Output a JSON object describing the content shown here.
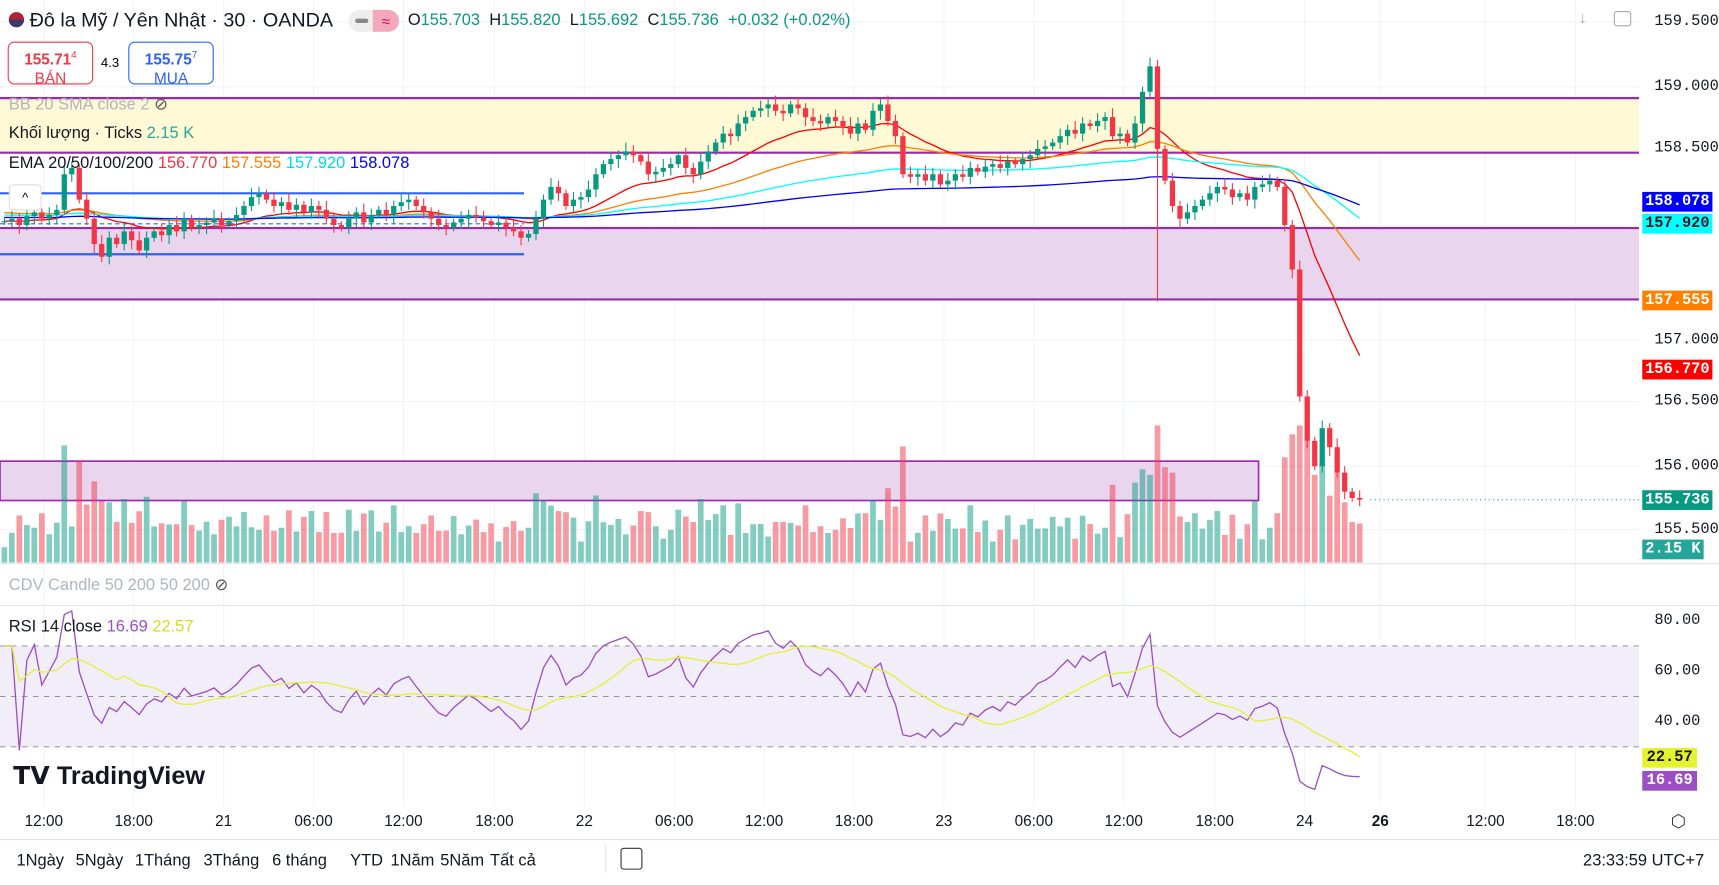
{
  "header": {
    "title": "Đô la Mỹ / Yên Nhật · 30 · OANDA",
    "ohlc": {
      "o_label": "O",
      "o": "155.703",
      "h_label": "H",
      "h": "155.820",
      "l_label": "L",
      "l": "155.692",
      "c_label": "C",
      "c": "155.736",
      "change": "+0.032 (+0.02%)"
    },
    "flag_icon": "us-flag-icon"
  },
  "trade": {
    "sell_price": "155.71",
    "sell_sup": "4",
    "sell_label": "BÁN",
    "spread": "4.3",
    "buy_price": "155.75",
    "buy_sup": "7",
    "buy_label": "MUA"
  },
  "indicators": {
    "bb": "BB 20 SMA close 2",
    "volume_label": "Khối lượng · Ticks",
    "volume_value": "2.15 K",
    "ema_label": "EMA 20/50/100/200",
    "ema20": "156.770",
    "ema50": "157.555",
    "ema100": "157.920",
    "ema200": "158.078",
    "cdv": "CDV Candle 50 200 50 200",
    "rsi_label": "RSI 14 close",
    "rsi_value": "16.69",
    "rsi_ma": "22.57"
  },
  "price_axis": [
    "159.500",
    "159.000",
    "158.500",
    "157.000",
    "156.500",
    "156.000",
    "155.500"
  ],
  "price_tags": {
    "ema200": "158.078",
    "ema100": "157.920",
    "ema50": "157.555",
    "ema20": "156.770",
    "last": "155.736",
    "volume": "2.15 K"
  },
  "rsi_axis": [
    "80.00",
    "60.00",
    "40.00"
  ],
  "rsi_tags": {
    "ma": "22.57",
    "rsi": "16.69"
  },
  "time_axis": [
    "12:00",
    "18:00",
    "21",
    "06:00",
    "12:00",
    "18:00",
    "22",
    "06:00",
    "12:00",
    "18:00",
    "23",
    "06:00",
    "12:00",
    "18:00",
    "24",
    "26",
    "12:00",
    "18:00"
  ],
  "ranges": [
    "1Ngày",
    "5Ngày",
    "1Tháng",
    "3Tháng",
    "6 tháng",
    "YTD",
    "1Năm",
    "5Năm",
    "Tất cả"
  ],
  "clock": "23:33:59 UTC+7",
  "logo": "TradingView",
  "colors": {
    "up": "#089981",
    "down": "#f23645",
    "ema20": "#ff0000",
    "ema50": "#ff8000",
    "ema100": "#00ffff",
    "ema200": "#0000ff",
    "rsi": "#9c4fc4",
    "rsi_ma": "#e5f230",
    "zone": "#9c27b0"
  },
  "chart_data": {
    "type": "candlestick",
    "interval": "30",
    "symbol": "USDJPY",
    "ylim": [
      155.5,
      159.5
    ],
    "closes": [
      157.93,
      157.95,
      157.9,
      157.97,
      158.0,
      157.95,
      157.98,
      158.02,
      158.3,
      158.35,
      158.1,
      157.95,
      157.75,
      157.65,
      157.8,
      157.75,
      157.85,
      157.78,
      157.7,
      157.8,
      157.85,
      157.82,
      157.9,
      157.85,
      157.95,
      157.88,
      157.9,
      157.92,
      157.95,
      157.9,
      157.93,
      157.98,
      158.05,
      158.12,
      158.15,
      158.1,
      158.05,
      158.08,
      158.02,
      158.06,
      158.0,
      158.05,
      158.02,
      157.95,
      157.9,
      157.88,
      157.95,
      158.0,
      157.92,
      157.98,
      158.02,
      157.98,
      158.05,
      158.08,
      158.1,
      158.05,
      158.0,
      157.95,
      157.9,
      157.88,
      157.92,
      157.95,
      157.98,
      157.96,
      157.93,
      157.9,
      157.92,
      157.88,
      157.85,
      157.8,
      157.83,
      157.95,
      158.1,
      158.2,
      158.15,
      158.05,
      158.1,
      158.12,
      158.18,
      158.3,
      158.38,
      158.42,
      158.45,
      158.48,
      158.45,
      158.4,
      158.3,
      158.32,
      158.35,
      158.38,
      158.45,
      158.35,
      158.3,
      158.4,
      158.48,
      158.55,
      158.62,
      158.6,
      158.7,
      158.75,
      158.8,
      158.82,
      158.85,
      158.8,
      158.78,
      158.85,
      158.82,
      158.75,
      158.72,
      158.7,
      158.75,
      158.72,
      158.68,
      158.62,
      158.7,
      158.65,
      158.8,
      158.85,
      158.72,
      158.6,
      158.3,
      158.28,
      158.3,
      158.25,
      158.3,
      158.22,
      158.25,
      158.3,
      158.28,
      158.35,
      158.32,
      158.36,
      158.38,
      158.35,
      158.4,
      158.38,
      158.42,
      158.45,
      158.5,
      158.52,
      158.55,
      158.6,
      158.65,
      158.62,
      158.7,
      158.68,
      158.72,
      158.75,
      158.6,
      158.62,
      158.55,
      158.7,
      158.95,
      159.15,
      158.5,
      158.25,
      158.05,
      157.95,
      158.0,
      158.05,
      158.1,
      158.15,
      158.2,
      158.18,
      158.12,
      158.15,
      158.1,
      158.2,
      158.22,
      158.25,
      158.2,
      157.9,
      157.55,
      156.55,
      156.2,
      156.0,
      156.3,
      156.15,
      155.95,
      155.8,
      155.75,
      155.736
    ],
    "zones": [
      {
        "top": 158.9,
        "bottom": 158.47,
        "fill": "#fff9d6"
      },
      {
        "top": 157.876,
        "bottom": 157.314,
        "fill": "#ead5ee"
      },
      {
        "top": 156.04,
        "bottom": 155.73,
        "fill": "#ead5ee"
      }
    ],
    "levels": [
      158.15,
      157.91,
      157.67
    ],
    "rsi_bands": [
      70,
      50,
      30
    ],
    "rsi_ylim": [
      10,
      85
    ]
  }
}
